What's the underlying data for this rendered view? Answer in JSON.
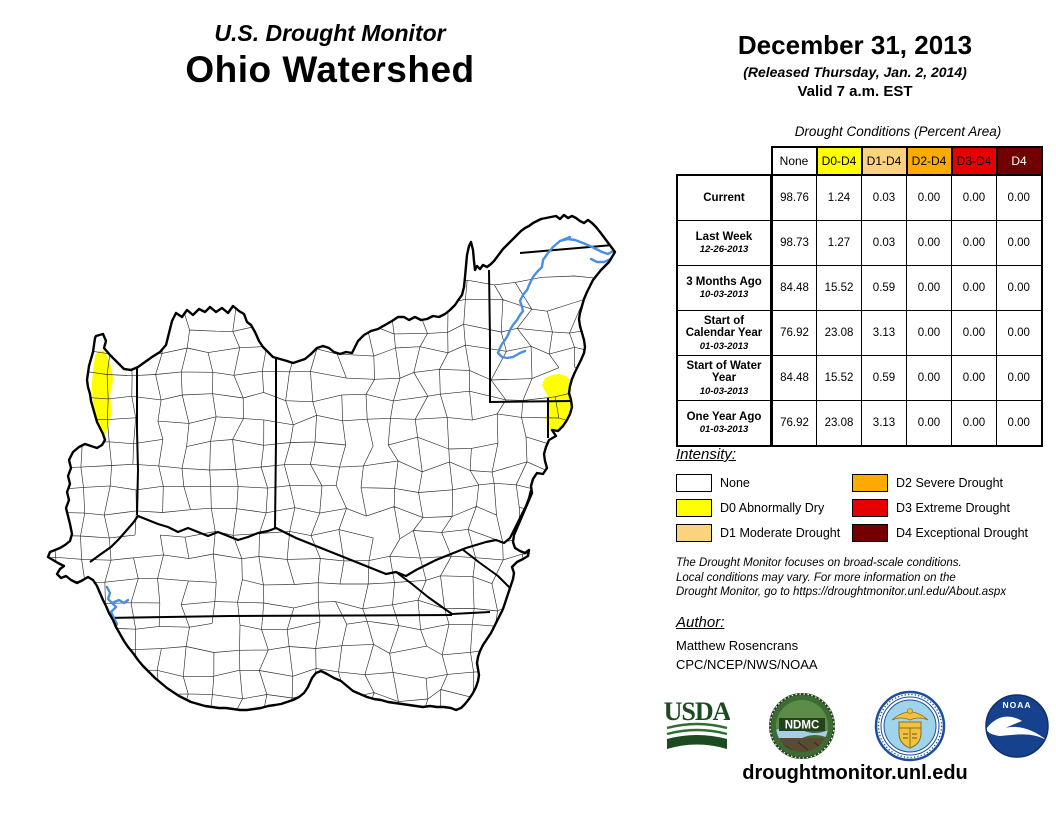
{
  "header": {
    "kicker": "U.S. Drought Monitor",
    "title": "Ohio Watershed",
    "date": "December 31, 2013",
    "released": "(Released Thursday, Jan. 2, 2014)",
    "valid": "Valid 7 a.m. EST"
  },
  "table": {
    "caption": "Drought Conditions (Percent Area)",
    "columns": [
      {
        "label": "None",
        "bg": "#FFFFFF",
        "fg": "#000000"
      },
      {
        "label": "D0-D4",
        "bg": "#FFFF00",
        "fg": "#000000"
      },
      {
        "label": "D1-D4",
        "bg": "#FBD37F",
        "fg": "#000000"
      },
      {
        "label": "D2-D4",
        "bg": "#FFAA00",
        "fg": "#000000"
      },
      {
        "label": "D3-D4",
        "bg": "#E60000",
        "fg": "#000000"
      },
      {
        "label": "D4",
        "bg": "#730000",
        "fg": "#FFFFFF"
      }
    ],
    "rows": [
      {
        "label": "Current",
        "date": "",
        "values": [
          "98.76",
          "1.24",
          "0.03",
          "0.00",
          "0.00",
          "0.00"
        ]
      },
      {
        "label": "Last Week",
        "date": "12-26-2013",
        "values": [
          "98.73",
          "1.27",
          "0.03",
          "0.00",
          "0.00",
          "0.00"
        ]
      },
      {
        "label": "3 Months Ago",
        "date": "10-03-2013",
        "values": [
          "84.48",
          "15.52",
          "0.59",
          "0.00",
          "0.00",
          "0.00"
        ]
      },
      {
        "label": "Start of Calendar Year",
        "date": "01-03-2013",
        "values": [
          "76.92",
          "23.08",
          "3.13",
          "0.00",
          "0.00",
          "0.00"
        ]
      },
      {
        "label": "Start of Water Year",
        "date": "10-03-2013",
        "values": [
          "84.48",
          "15.52",
          "0.59",
          "0.00",
          "0.00",
          "0.00"
        ]
      },
      {
        "label": "One Year Ago",
        "date": "01-03-2013",
        "values": [
          "76.92",
          "23.08",
          "3.13",
          "0.00",
          "0.00",
          "0.00"
        ]
      }
    ]
  },
  "legend": {
    "title": "Intensity:",
    "items": [
      {
        "label": "None",
        "color": "#FFFFFF"
      },
      {
        "label": "D0 Abnormally Dry",
        "color": "#FFFF00"
      },
      {
        "label": "D1 Moderate Drought",
        "color": "#FBD37F"
      },
      {
        "label": "D2 Severe Drought",
        "color": "#FFAA00"
      },
      {
        "label": "D3 Extreme Drought",
        "color": "#E60000"
      },
      {
        "label": "D4 Exceptional Drought",
        "color": "#730000"
      }
    ]
  },
  "notes": {
    "line1": "The Drought Monitor focuses on broad-scale conditions.",
    "line2": "Local conditions may vary. For more information on the",
    "line3": "Drought Monitor, go to https://droughtmonitor.unl.edu/About.aspx"
  },
  "author": {
    "title": "Author:",
    "name": "Matthew Rosencrans",
    "org": "CPC/NCEP/NWS/NOAA"
  },
  "logos": {
    "usda": "USDA",
    "ndmc": "NDMC",
    "noaa": "NOAA"
  },
  "footer": {
    "url": "droughtmonitor.unl.edu"
  },
  "map": {
    "region": "Ohio Watershed",
    "colors": {
      "boundary": "#000000",
      "county_line": "#2b2b2b",
      "water": "#4C8FE0",
      "d0_fill": "#FFFF00",
      "d1_fill": "#F3CFA3"
    },
    "patches": [
      {
        "category": "D0 Abnormally Dry",
        "location": "western edge"
      },
      {
        "category": "D1 Moderate Drought",
        "location": "western edge sliver"
      },
      {
        "category": "D0 Abnormally Dry",
        "location": "eastern edge"
      }
    ]
  }
}
